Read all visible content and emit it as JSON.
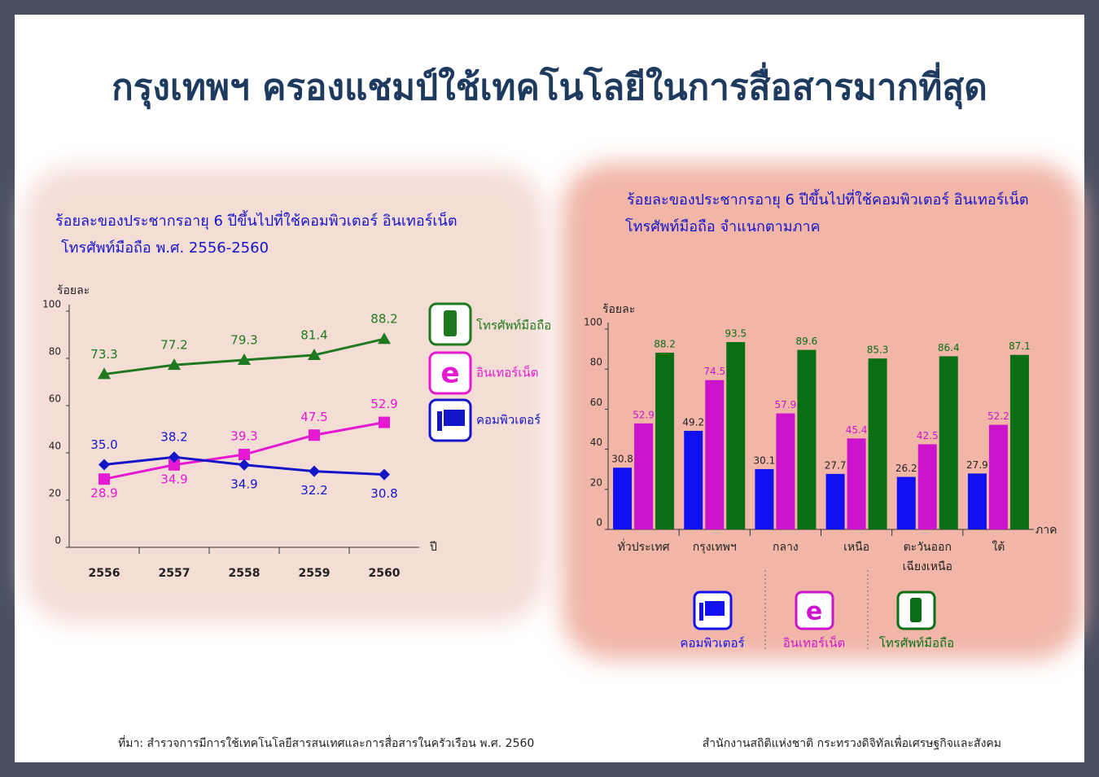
{
  "header": {
    "title": "กรุงเทพฯ ครองแชมป์ใช้เทคโนโลยีในการสื่อสารมากที่สุด"
  },
  "footer": {
    "source": "ที่มา: สำรวจการมีการใช้เทคโนโลยีสารสนเทศและการสื่อสารในครัวเรือน พ.ศ. 2560",
    "agency": "สำนักงานสถิติแห่งชาติ กระทรวงดิจิทัลเพื่อเศรษฐกิจและสังคม"
  },
  "chart_data": [
    {
      "type": "line",
      "title": "ร้อยละของประชากรอายุ 6 ปีขึ้นไปที่ใช้คอมพิวเตอร์ อินเทอร์เน็ต",
      "subtitle": "โทรศัพท์มือถือ พ.ศ. 2556-2560",
      "y_label": "ร้อยละ",
      "x_label": "ปี",
      "categories": [
        "2556",
        "2557",
        "2558",
        "2559",
        "2560"
      ],
      "ylim": [
        0,
        100
      ],
      "yticks": [
        0,
        20,
        40,
        60,
        80,
        100
      ],
      "series": [
        {
          "name": "โทรศัพท์มือถือ",
          "color": "#1f7a1f",
          "marker": "triangle",
          "values": [
            73.3,
            77.2,
            79.3,
            81.4,
            88.2
          ]
        },
        {
          "name": "อินเทอร์เน็ต",
          "color": "#e619d2",
          "marker": "square",
          "values": [
            28.9,
            34.9,
            39.3,
            47.5,
            52.9
          ]
        },
        {
          "name": "คอมพิวเตอร์",
          "color": "#1515c8",
          "marker": "diamond",
          "values": [
            35.0,
            38.2,
            34.9,
            32.2,
            30.8
          ],
          "value_labels": [
            "35.0",
            "38.2",
            "34.9",
            "32.2",
            "30.8"
          ]
        }
      ]
    },
    {
      "type": "bar",
      "title": "ร้อยละของประชากรอายุ 6 ปีขึ้นไปที่ใช้คอมพิวเตอร์ อินเทอร์เน็ต",
      "subtitle": "โทรศัพท์มือถือ จำแนกตามภาค",
      "y_label": "ร้อยละ",
      "x_label": "ภาค",
      "categories": [
        "ทั่วประเทศ",
        "กรุงเทพฯ",
        "กลาง",
        "เหนือ",
        "ตะวันออก เฉียงเหนือ",
        "ใต้"
      ],
      "ylim": [
        0,
        100
      ],
      "yticks": [
        0,
        20,
        40,
        60,
        80,
        100
      ],
      "series": [
        {
          "name": "คอมพิวเตอร์",
          "color": "#1010f0",
          "values": [
            30.8,
            49.2,
            30.1,
            27.7,
            26.2,
            27.9
          ]
        },
        {
          "name": "อินเทอร์เน็ต",
          "color": "#cc14cc",
          "values": [
            52.9,
            74.5,
            57.9,
            45.4,
            42.5,
            52.2
          ]
        },
        {
          "name": "โทรศัพท์มือถือ",
          "color": "#0a6e14",
          "values": [
            88.2,
            93.5,
            89.6,
            85.3,
            86.4,
            87.1
          ]
        }
      ]
    }
  ]
}
